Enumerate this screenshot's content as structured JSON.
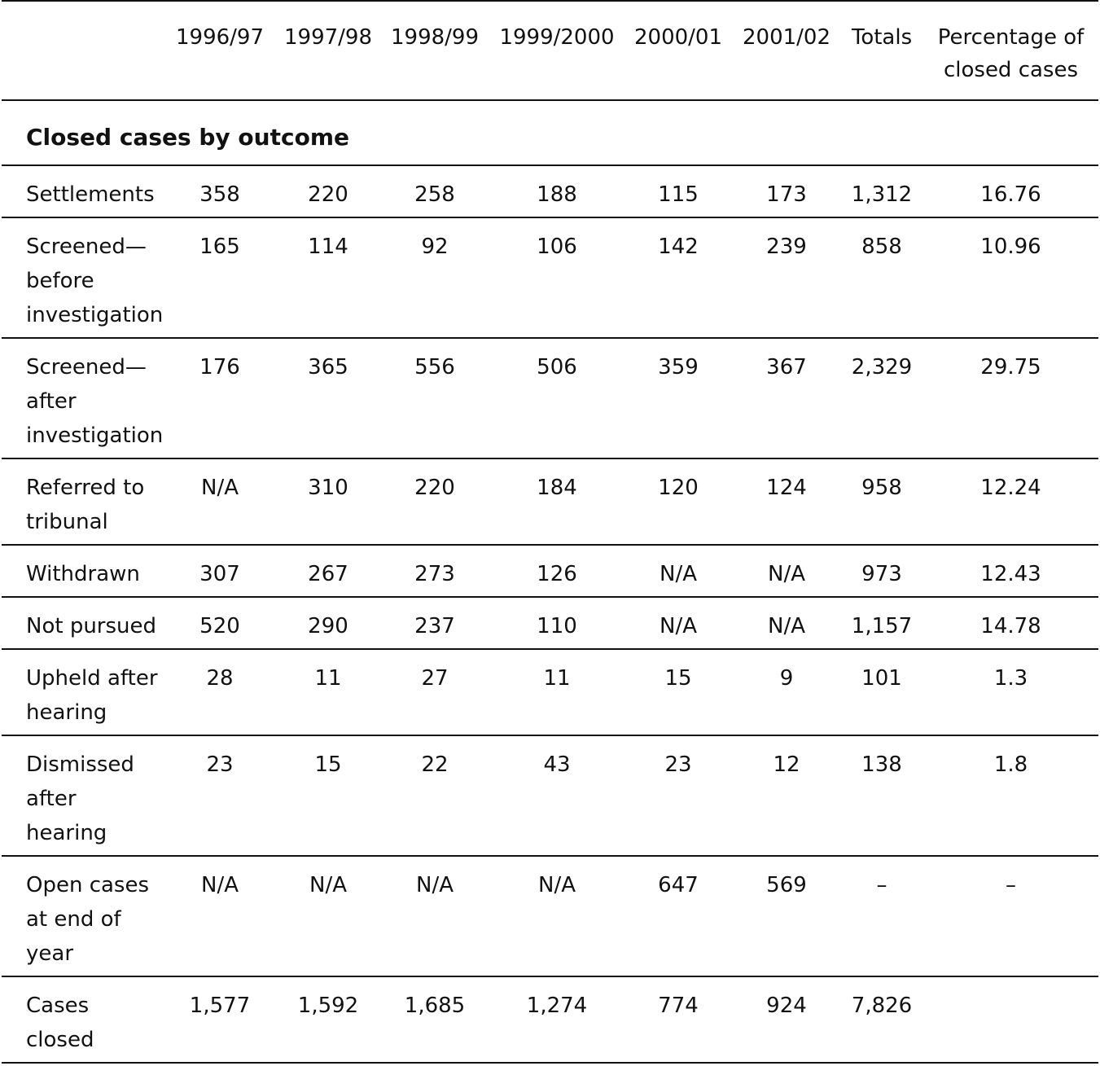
{
  "table": {
    "headers": [
      "",
      "1996/97",
      "1997/98",
      "1998/99",
      "1999/2000",
      "2000/01",
      "2001/02",
      "Totals",
      "Percentage of closed cases"
    ],
    "section_title": "Closed cases by outcome",
    "rows": [
      {
        "label": "Settlements",
        "values": [
          "358",
          "220",
          "258",
          "188",
          "115",
          "173",
          "1,312",
          "16.76"
        ]
      },
      {
        "label": "Screened—before investigation",
        "values": [
          "165",
          "114",
          "92",
          "106",
          "142",
          "239",
          "858",
          "10.96"
        ]
      },
      {
        "label": "Screened—after investigation",
        "values": [
          "176",
          "365",
          "556",
          "506",
          "359",
          "367",
          "2,329",
          "29.75"
        ]
      },
      {
        "label": "Referred to tribunal",
        "values": [
          "N/A",
          "310",
          "220",
          "184",
          "120",
          "124",
          "958",
          "12.24"
        ]
      },
      {
        "label": "Withdrawn",
        "values": [
          "307",
          "267",
          "273",
          "126",
          "N/A",
          "N/A",
          "973",
          "12.43"
        ]
      },
      {
        "label": "Not pursued",
        "values": [
          "520",
          "290",
          "237",
          "110",
          "N/A",
          "N/A",
          "1,157",
          "14.78"
        ]
      },
      {
        "label": "Upheld after hearing",
        "values": [
          "28",
          "11",
          "27",
          "11",
          "15",
          "9",
          "101",
          "1.3"
        ]
      },
      {
        "label": "Dismissed after hearing",
        "values": [
          "23",
          "15",
          "22",
          "43",
          "23",
          "12",
          "138",
          "1.8"
        ]
      },
      {
        "label": "Open cases at end of year",
        "values": [
          "N/A",
          "N/A",
          "N/A",
          "N/A",
          "647",
          "569",
          "–",
          "–"
        ]
      },
      {
        "label": "Cases closed",
        "values": [
          "1,577",
          "1,592",
          "1,685",
          "1,274",
          "774",
          "924",
          "7,826",
          ""
        ]
      }
    ]
  }
}
